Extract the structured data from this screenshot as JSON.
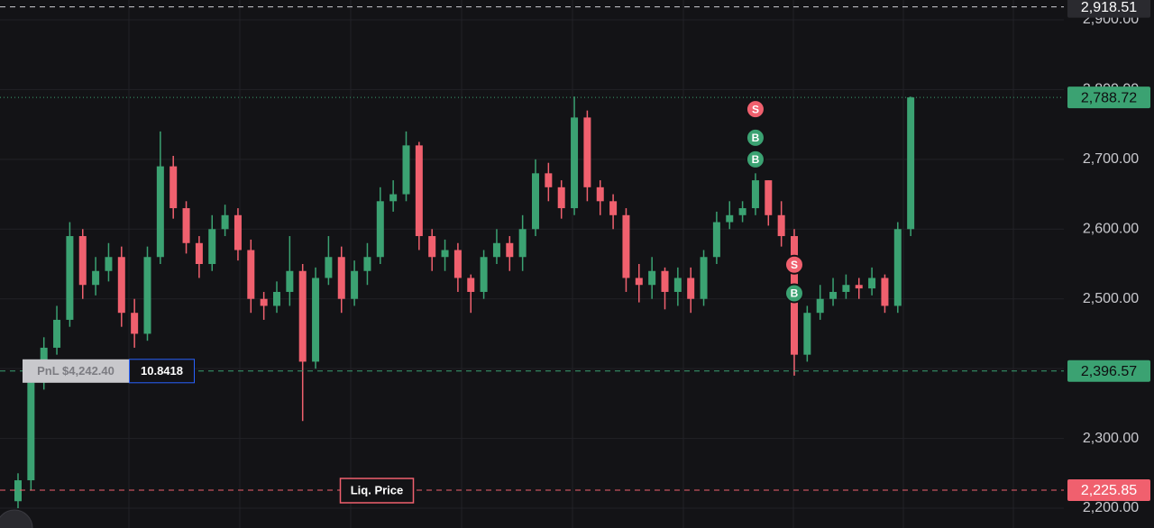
{
  "chart_data": {
    "type": "candlestick",
    "ylim": [
      2171.6,
      2928.4
    ],
    "yticks": [
      {
        "value": 2200,
        "label": "2,200.00"
      },
      {
        "value": 2300,
        "label": "2,300.00"
      },
      {
        "value": 2400,
        "label": "2,400.00"
      },
      {
        "value": 2500,
        "label": "2,500.00"
      },
      {
        "value": 2600,
        "label": "2,600.00"
      },
      {
        "value": 2700,
        "label": "2,700.00"
      },
      {
        "value": 2800,
        "label": "2,800.00"
      },
      {
        "value": 2900,
        "label": "2,900.00"
      }
    ],
    "grid": true,
    "up_color": "#3ba272",
    "down_color": "#f0606e",
    "series": [
      {
        "open": [
          2210,
          2240,
          2380,
          2430,
          2470,
          2590,
          2520,
          2540,
          2560,
          2480,
          2450,
          2560,
          2690,
          2630,
          2580,
          2550,
          2600,
          2620,
          2570,
          2500,
          2490,
          2510,
          2540,
          2410,
          2530,
          2560,
          2500,
          2540,
          2560,
          2640,
          2650,
          2720,
          2590,
          2560,
          2570,
          2530,
          2510,
          2560,
          2580,
          2560,
          2600,
          2680,
          2660,
          2630,
          2760,
          2660,
          2640,
          2620,
          2530,
          2520,
          2540,
          2510,
          2530,
          2500,
          2560,
          2610,
          2620,
          2630,
          2670,
          2620,
          2590,
          2420,
          2480,
          2500,
          2510,
          2520,
          2515,
          2530,
          2490,
          2600
        ],
        "high": [
          2250,
          2400,
          2445,
          2490,
          2610,
          2600,
          2560,
          2580,
          2575,
          2500,
          2575,
          2740,
          2705,
          2640,
          2590,
          2620,
          2635,
          2630,
          2585,
          2510,
          2525,
          2590,
          2550,
          2545,
          2590,
          2575,
          2555,
          2580,
          2660,
          2670,
          2740,
          2725,
          2600,
          2585,
          2580,
          2535,
          2570,
          2600,
          2590,
          2620,
          2700,
          2695,
          2670,
          2790,
          2770,
          2670,
          2650,
          2630,
          2550,
          2560,
          2545,
          2545,
          2545,
          2570,
          2625,
          2640,
          2640,
          2680,
          2670,
          2640,
          2600,
          2490,
          2520,
          2530,
          2535,
          2530,
          2545,
          2535,
          2610,
          2790
        ],
        "low": [
          2200,
          2225,
          2370,
          2420,
          2460,
          2500,
          2505,
          2525,
          2460,
          2430,
          2440,
          2550,
          2615,
          2565,
          2530,
          2540,
          2590,
          2555,
          2480,
          2470,
          2480,
          2490,
          2325,
          2400,
          2520,
          2480,
          2490,
          2520,
          2550,
          2625,
          2640,
          2570,
          2540,
          2540,
          2510,
          2480,
          2500,
          2550,
          2540,
          2540,
          2590,
          2640,
          2615,
          2620,
          2640,
          2620,
          2600,
          2510,
          2495,
          2500,
          2485,
          2490,
          2480,
          2490,
          2550,
          2600,
          2610,
          2620,
          2605,
          2575,
          2390,
          2410,
          2470,
          2490,
          2500,
          2500,
          2505,
          2480,
          2480,
          2590
        ],
        "close": [
          2240,
          2380,
          2430,
          2470,
          2590,
          2520,
          2540,
          2560,
          2480,
          2450,
          2560,
          2690,
          2630,
          2580,
          2550,
          2600,
          2620,
          2570,
          2500,
          2490,
          2510,
          2540,
          2410,
          2530,
          2560,
          2500,
          2540,
          2560,
          2640,
          2650,
          2720,
          2590,
          2560,
          2570,
          2530,
          2510,
          2560,
          2580,
          2560,
          2600,
          2680,
          2660,
          2630,
          2760,
          2660,
          2640,
          2620,
          2530,
          2520,
          2540,
          2510,
          2530,
          2500,
          2560,
          2610,
          2620,
          2630,
          2670,
          2620,
          2590,
          2420,
          2480,
          2500,
          2510,
          2520,
          2515,
          2530,
          2490,
          2600,
          2788.72
        ]
      }
    ],
    "price_lines": [
      {
        "price": {
          "value": 2918.51,
          "label": "2,918.51"
        },
        "color": "#cfcfd4",
        "label_bg": "#2a2a2f",
        "label_color": "#ffffff",
        "dash": "6 5"
      },
      {
        "price": {
          "value": 2788.72,
          "label": "2,788.72"
        },
        "color": "#3ba272",
        "label_bg": "#3ba272",
        "label_color": "#0e0e10",
        "dash": "1 3"
      },
      {
        "price": {
          "value": 2396.57,
          "label": "2,396.57"
        },
        "color": "#3ba272",
        "label_bg": "#3ba272",
        "label_color": "#0e0e10",
        "dash": "6 5"
      },
      {
        "price": {
          "value": 2225.85,
          "label": "2,225.85"
        },
        "color": "#f0606e",
        "label_bg": "#f0606e",
        "label_color": "#ffffff",
        "dash": "6 5"
      }
    ],
    "markers": [
      {
        "label": "S",
        "candle": 57,
        "price": 2772,
        "color": "#f0606e"
      },
      {
        "label": "B",
        "candle": 57,
        "price": 2731,
        "color": "#3ba272"
      },
      {
        "label": "B",
        "candle": 57,
        "price": 2700,
        "color": "#3ba272"
      },
      {
        "label": "S",
        "candle": 60,
        "price": 2549,
        "color": "#f0606e"
      },
      {
        "label": "B",
        "candle": 60,
        "price": 2508,
        "color": "#3ba272"
      }
    ],
    "position": {
      "pnl": "PnL $4,242.40",
      "size": 10.8418
    },
    "liquidation": {
      "label": "Liq. Price"
    }
  }
}
